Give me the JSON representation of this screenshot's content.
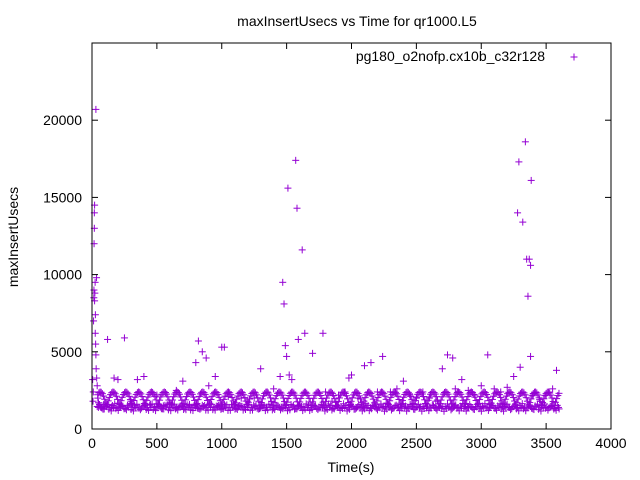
{
  "chart_data": {
    "type": "scatter",
    "title": "maxInsertUsecs vs Time for qr1000.L5",
    "xlabel": "Time(s)",
    "ylabel": "maxInsertUsecs",
    "xlim": [
      0,
      4000
    ],
    "ylim": [
      0,
      25000
    ],
    "xticks": [
      "0",
      "500",
      "1000",
      "1500",
      "2000",
      "2500",
      "3000",
      "3500",
      "4000"
    ],
    "yticks": [
      "0",
      "5000",
      "10000",
      "15000",
      "20000"
    ],
    "grid": false,
    "legend_position": "top-right",
    "series": [
      {
        "name": "pg180_o2nofp.cx10b_c32r128",
        "color": "#9400d3",
        "marker": "plus",
        "points": [
          [
            5,
            3200
          ],
          [
            8,
            1800
          ],
          [
            10,
            2400
          ],
          [
            12,
            7000
          ],
          [
            14,
            8500
          ],
          [
            15,
            9000
          ],
          [
            16,
            12000
          ],
          [
            18,
            13000
          ],
          [
            18,
            14000
          ],
          [
            20,
            14500
          ],
          [
            20,
            8300
          ],
          [
            22,
            8800
          ],
          [
            24,
            9500
          ],
          [
            25,
            6200
          ],
          [
            26,
            7400
          ],
          [
            28,
            5500
          ],
          [
            30,
            20700
          ],
          [
            30,
            4800
          ],
          [
            32,
            3900
          ],
          [
            35,
            9800
          ],
          [
            36,
            3300
          ],
          [
            40,
            2800
          ],
          [
            45,
            2000
          ],
          [
            50,
            1700
          ],
          [
            60,
            1500
          ],
          [
            70,
            1400
          ],
          [
            90,
            1600
          ],
          [
            100,
            1500
          ],
          [
            120,
            5800
          ],
          [
            150,
            1400
          ],
          [
            170,
            3300
          ],
          [
            200,
            3200
          ],
          [
            250,
            5900
          ],
          [
            300,
            1800
          ],
          [
            350,
            3200
          ],
          [
            400,
            3400
          ],
          [
            450,
            1600
          ],
          [
            500,
            2200
          ],
          [
            550,
            1500
          ],
          [
            600,
            1700
          ],
          [
            650,
            2500
          ],
          [
            700,
            3100
          ],
          [
            750,
            1500
          ],
          [
            800,
            4300
          ],
          [
            820,
            5700
          ],
          [
            850,
            5000
          ],
          [
            880,
            4600
          ],
          [
            900,
            2800
          ],
          [
            950,
            3400
          ],
          [
            1000,
            5300
          ],
          [
            1020,
            5300
          ],
          [
            1050,
            2100
          ],
          [
            1100,
            1600
          ],
          [
            1150,
            2000
          ],
          [
            1200,
            1800
          ],
          [
            1250,
            2000
          ],
          [
            1300,
            3900
          ],
          [
            1350,
            2400
          ],
          [
            1400,
            2600
          ],
          [
            1450,
            3400
          ],
          [
            1470,
            9500
          ],
          [
            1480,
            8100
          ],
          [
            1490,
            5400
          ],
          [
            1500,
            4700
          ],
          [
            1510,
            15600
          ],
          [
            1520,
            3500
          ],
          [
            1540,
            3200
          ],
          [
            1570,
            17400
          ],
          [
            1580,
            14300
          ],
          [
            1590,
            5800
          ],
          [
            1620,
            11600
          ],
          [
            1640,
            6200
          ],
          [
            1700,
            4900
          ],
          [
            1780,
            6200
          ],
          [
            1800,
            2400
          ],
          [
            1850,
            1800
          ],
          [
            1900,
            2200
          ],
          [
            1950,
            2400
          ],
          [
            1980,
            3300
          ],
          [
            2000,
            3500
          ],
          [
            2050,
            2000
          ],
          [
            2100,
            4100
          ],
          [
            2150,
            4300
          ],
          [
            2200,
            2400
          ],
          [
            2240,
            4700
          ],
          [
            2300,
            2400
          ],
          [
            2350,
            2600
          ],
          [
            2400,
            3100
          ],
          [
            2450,
            2200
          ],
          [
            2500,
            2000
          ],
          [
            2550,
            2400
          ],
          [
            2600,
            2000
          ],
          [
            2650,
            1800
          ],
          [
            2700,
            3900
          ],
          [
            2740,
            4800
          ],
          [
            2780,
            4600
          ],
          [
            2800,
            2600
          ],
          [
            2850,
            3200
          ],
          [
            2900,
            2500
          ],
          [
            2950,
            2200
          ],
          [
            3000,
            2800
          ],
          [
            3050,
            4800
          ],
          [
            3100,
            2600
          ],
          [
            3150,
            2400
          ],
          [
            3200,
            2700
          ],
          [
            3250,
            3400
          ],
          [
            3280,
            14000
          ],
          [
            3290,
            17300
          ],
          [
            3300,
            4000
          ],
          [
            3320,
            13400
          ],
          [
            3340,
            18600
          ],
          [
            3350,
            11000
          ],
          [
            3360,
            8600
          ],
          [
            3370,
            11000
          ],
          [
            3380,
            10600
          ],
          [
            3385,
            16100
          ],
          [
            3380,
            4700
          ],
          [
            3400,
            2200
          ],
          [
            3450,
            1900
          ],
          [
            3500,
            2200
          ],
          [
            3550,
            2600
          ],
          [
            3580,
            3800
          ],
          [
            3600,
            1300
          ]
        ]
      }
    ]
  }
}
